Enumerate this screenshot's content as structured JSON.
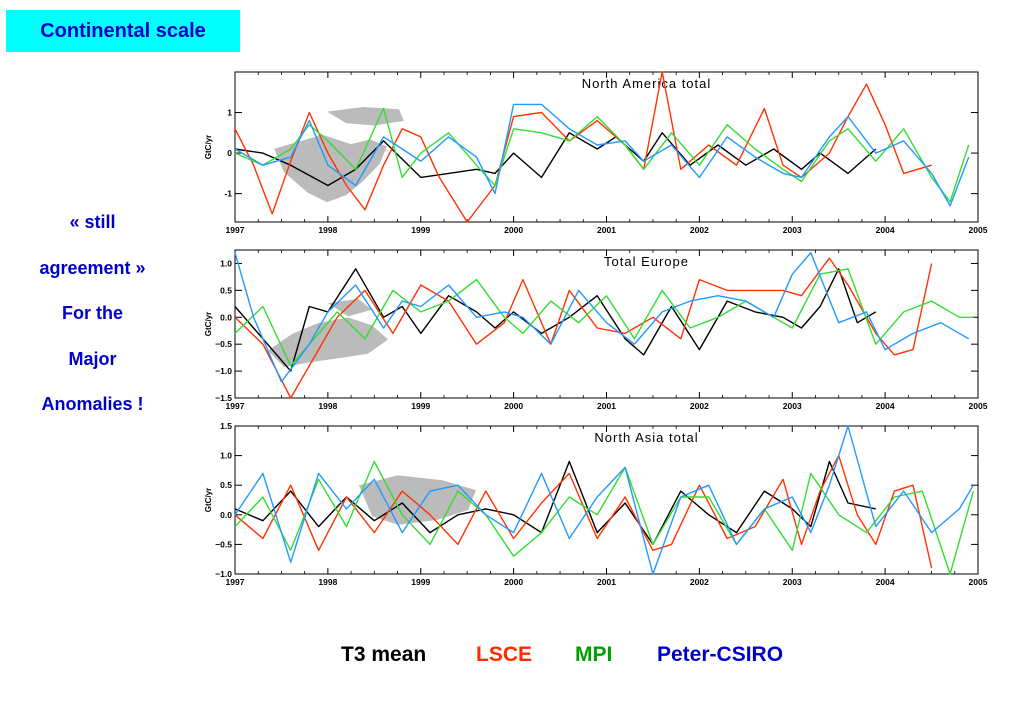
{
  "slide": {
    "title": "Continental scale",
    "side_note": [
      "« still",
      "agreement »",
      "For the",
      "Major",
      "Anomalies !"
    ]
  },
  "legend": {
    "items": [
      {
        "label": "T3 mean",
        "color": "#000000"
      },
      {
        "label": "LSCE",
        "color": "#ff2a00"
      },
      {
        "label": "MPI",
        "color": "#00a000"
      },
      {
        "label": "Peter-CSIRO",
        "color": "#0000cc"
      }
    ]
  },
  "colors": {
    "title_bg": "#00ffff",
    "title_text": "#0000cc",
    "t3_mean": "#000000",
    "lsce": "#ff3300",
    "mpi": "#33dd33",
    "peter_csiro": "#2299ff",
    "land_fill": "#bbbbbb"
  },
  "chart_data": [
    {
      "type": "line",
      "title": "North America total",
      "ylabel": "GtC/yr",
      "xlim": [
        1997,
        2005
      ],
      "ylim": [
        -1.7,
        2.0
      ],
      "yticks": [
        -1,
        0,
        1
      ],
      "xticks": [
        1997,
        1998,
        1999,
        2000,
        2001,
        2002,
        2003,
        2004,
        2005
      ],
      "background_map": "north-america-map",
      "series": [
        {
          "name": "T3 mean",
          "x": [
            1997.0,
            1997.3,
            1997.6,
            1998.0,
            1998.3,
            1998.6,
            1999.0,
            1999.3,
            1999.6,
            1999.8,
            2000.0,
            2000.3,
            2000.6,
            2000.9,
            2001.1,
            2001.4,
            2001.6,
            2001.9,
            2002.2,
            2002.5,
            2002.8,
            2003.1,
            2003.3,
            2003.6,
            2003.9
          ],
          "values": [
            0.1,
            0.0,
            -0.3,
            -0.8,
            -0.4,
            0.3,
            -0.6,
            -0.5,
            -0.4,
            -0.5,
            0.0,
            -0.6,
            0.5,
            0.1,
            0.4,
            -0.2,
            0.5,
            -0.3,
            0.2,
            -0.3,
            0.1,
            -0.4,
            0.0,
            -0.5,
            0.1
          ]
        },
        {
          "name": "LSCE",
          "x": [
            1997.0,
            1997.2,
            1997.4,
            1997.6,
            1997.8,
            1998.0,
            1998.2,
            1998.4,
            1998.6,
            1998.8,
            1999.0,
            1999.2,
            1999.5,
            1999.8,
            2000.0,
            2000.3,
            2000.6,
            2000.9,
            2001.2,
            2001.4,
            2001.6,
            2001.8,
            2002.1,
            2002.4,
            2002.7,
            2002.9,
            2003.1,
            2003.4,
            2003.6,
            2003.8,
            2004.0,
            2004.2,
            2004.5
          ],
          "values": [
            0.6,
            -0.3,
            -1.5,
            -0.2,
            1.0,
            0.0,
            -0.8,
            -1.4,
            -0.3,
            0.6,
            0.4,
            -0.6,
            -1.7,
            -0.8,
            0.9,
            1.0,
            0.3,
            0.8,
            0.2,
            -0.4,
            2.0,
            -0.4,
            0.2,
            -0.3,
            1.1,
            -0.3,
            -0.6,
            0.0,
            0.9,
            1.7,
            0.7,
            -0.5,
            -0.3
          ]
        },
        {
          "name": "MPI",
          "x": [
            1997.0,
            1997.3,
            1997.6,
            1997.8,
            1998.0,
            1998.3,
            1998.6,
            1998.8,
            1999.0,
            1999.3,
            1999.6,
            1999.8,
            2000.0,
            2000.3,
            2000.6,
            2000.9,
            2001.2,
            2001.4,
            2001.7,
            2002.0,
            2002.3,
            2002.6,
            2002.9,
            2003.1,
            2003.4,
            2003.6,
            2003.9,
            2004.2,
            2004.5,
            2004.7,
            2004.9
          ],
          "values": [
            0.0,
            -0.3,
            0.1,
            0.7,
            0.3,
            -0.4,
            1.1,
            -0.6,
            0.0,
            0.5,
            -0.3,
            -0.8,
            0.6,
            0.5,
            0.3,
            0.9,
            0.2,
            -0.4,
            0.5,
            -0.3,
            0.7,
            0.1,
            -0.4,
            -0.7,
            0.3,
            0.6,
            -0.2,
            0.6,
            -0.6,
            -1.2,
            0.2
          ]
        },
        {
          "name": "Peter-CSIRO",
          "x": [
            1997.0,
            1997.3,
            1997.6,
            1997.8,
            1998.0,
            1998.3,
            1998.6,
            1998.8,
            1999.0,
            1999.3,
            1999.6,
            1999.8,
            2000.0,
            2000.3,
            2000.6,
            2000.9,
            2001.2,
            2001.4,
            2001.7,
            2002.0,
            2002.3,
            2002.6,
            2002.9,
            2003.1,
            2003.4,
            2003.6,
            2003.9,
            2004.2,
            2004.5,
            2004.7,
            2004.9
          ],
          "values": [
            0.1,
            -0.3,
            -0.1,
            0.8,
            -0.3,
            -0.8,
            0.4,
            0.1,
            -0.2,
            0.4,
            -0.1,
            -1.0,
            1.2,
            1.2,
            0.6,
            0.2,
            0.3,
            -0.2,
            0.2,
            -0.6,
            0.4,
            -0.1,
            -0.5,
            -0.6,
            0.4,
            0.9,
            0.0,
            0.3,
            -0.5,
            -1.3,
            -0.1
          ]
        }
      ]
    },
    {
      "type": "line",
      "title": "Total Europe",
      "ylabel": "GtC/yr",
      "xlim": [
        1997,
        2005
      ],
      "ylim": [
        -1.5,
        1.25
      ],
      "yticks": [
        -1.5,
        -1.0,
        -0.5,
        0.0,
        0.5,
        1.0
      ],
      "ytick_labels": [
        "−1.5",
        "−1.0",
        "−0.5",
        "0.0",
        "0.5",
        "1.0"
      ],
      "xticks": [
        1997,
        1998,
        1999,
        2000,
        2001,
        2002,
        2003,
        2004,
        2005
      ],
      "background_map": "europe-map",
      "series": [
        {
          "name": "T3 mean",
          "x": [
            1997.0,
            1997.3,
            1997.6,
            1997.8,
            1998.0,
            1998.3,
            1998.6,
            1998.8,
            1999.0,
            1999.3,
            1999.6,
            1999.8,
            2000.0,
            2000.3,
            2000.6,
            2000.9,
            2001.2,
            2001.4,
            2001.7,
            2002.0,
            2002.3,
            2002.6,
            2002.9,
            2003.1,
            2003.3,
            2003.5,
            2003.7,
            2003.9
          ],
          "values": [
            0.2,
            -0.4,
            -1.0,
            0.2,
            0.1,
            0.9,
            0.0,
            0.2,
            -0.3,
            0.4,
            0.1,
            -0.2,
            0.1,
            -0.3,
            0.0,
            0.4,
            -0.4,
            -0.7,
            0.2,
            -0.6,
            0.3,
            0.1,
            0.0,
            -0.2,
            0.2,
            0.9,
            -0.1,
            0.1
          ]
        },
        {
          "name": "LSCE",
          "x": [
            1997.0,
            1997.3,
            1997.6,
            1997.9,
            1998.1,
            1998.4,
            1998.7,
            1999.0,
            1999.3,
            1999.6,
            1999.9,
            2000.1,
            2000.4,
            2000.6,
            2000.9,
            2001.2,
            2001.5,
            2001.8,
            2002.0,
            2002.3,
            2002.6,
            2002.9,
            2003.1,
            2003.4,
            2003.6,
            2003.9,
            2004.1,
            2004.3,
            2004.5
          ],
          "values": [
            0.0,
            -0.5,
            -1.5,
            -0.6,
            0.0,
            0.5,
            -0.3,
            0.6,
            0.3,
            -0.5,
            -0.1,
            0.7,
            -0.5,
            0.5,
            -0.2,
            -0.3,
            0.0,
            -0.4,
            0.7,
            0.5,
            0.5,
            0.5,
            0.4,
            1.1,
            0.6,
            -0.3,
            -0.7,
            -0.6,
            1.0
          ]
        },
        {
          "name": "MPI",
          "x": [
            1997.0,
            1997.3,
            1997.6,
            1997.9,
            1998.1,
            1998.4,
            1998.7,
            1999.0,
            1999.3,
            1999.6,
            1999.9,
            2000.1,
            2000.4,
            2000.7,
            2001.0,
            2001.3,
            2001.6,
            2001.9,
            2002.2,
            2002.5,
            2002.8,
            2003.0,
            2003.3,
            2003.6,
            2003.9,
            2004.2,
            2004.5,
            2004.8,
            2004.95
          ],
          "values": [
            -0.3,
            0.2,
            -0.9,
            -0.3,
            0.1,
            -0.4,
            0.5,
            0.1,
            0.3,
            0.7,
            0.0,
            -0.3,
            0.3,
            -0.1,
            0.4,
            -0.4,
            0.5,
            -0.2,
            0.0,
            0.3,
            0.0,
            -0.2,
            0.8,
            0.9,
            -0.5,
            0.1,
            0.3,
            0.0,
            0.0
          ]
        },
        {
          "name": "Peter-CSIRO",
          "x": [
            1997.0,
            1997.2,
            1997.5,
            1997.8,
            1998.0,
            1998.3,
            1998.6,
            1998.8,
            1999.0,
            1999.3,
            1999.6,
            1999.9,
            2000.1,
            2000.4,
            2000.7,
            2001.0,
            2001.3,
            2001.6,
            2001.9,
            2002.2,
            2002.5,
            2002.8,
            2003.0,
            2003.2,
            2003.5,
            2003.8,
            2004.0,
            2004.3,
            2004.6,
            2004.9
          ],
          "values": [
            1.2,
            0.0,
            -1.2,
            -0.5,
            0.1,
            0.6,
            -0.2,
            0.3,
            0.2,
            0.6,
            0.0,
            0.1,
            0.0,
            -0.5,
            0.5,
            -0.1,
            -0.5,
            0.1,
            0.3,
            0.4,
            0.3,
            0.0,
            0.8,
            1.2,
            -0.1,
            0.1,
            -0.6,
            -0.3,
            -0.1,
            -0.4
          ]
        }
      ]
    },
    {
      "type": "line",
      "title": "North Asia total",
      "ylabel": "GtC/yr",
      "xlim": [
        1997,
        2005
      ],
      "ylim": [
        -1.0,
        1.5
      ],
      "yticks": [
        -1.0,
        -0.5,
        0.0,
        0.5,
        1.0,
        1.5
      ],
      "ytick_labels": [
        "−1.0",
        "−0.5",
        "0.0",
        "0.5",
        "1.0",
        "1.5"
      ],
      "xticks": [
        1997,
        1998,
        1999,
        2000,
        2001,
        2002,
        2003,
        2004,
        2005
      ],
      "background_map": "north-asia-map",
      "series": [
        {
          "name": "T3 mean",
          "x": [
            1997.0,
            1997.3,
            1997.6,
            1997.9,
            1998.2,
            1998.5,
            1998.8,
            1999.1,
            1999.4,
            1999.7,
            2000.0,
            2000.3,
            2000.6,
            2000.9,
            2001.2,
            2001.5,
            2001.8,
            2002.1,
            2002.4,
            2002.7,
            2003.0,
            2003.2,
            2003.4,
            2003.6,
            2003.9
          ],
          "values": [
            0.1,
            -0.1,
            0.4,
            -0.2,
            0.3,
            -0.1,
            0.2,
            -0.3,
            0.0,
            0.1,
            0.0,
            -0.3,
            0.9,
            -0.3,
            0.2,
            -0.5,
            0.4,
            0.0,
            -0.3,
            0.4,
            0.1,
            -0.2,
            0.9,
            0.2,
            0.1
          ]
        },
        {
          "name": "LSCE",
          "x": [
            1997.0,
            1997.3,
            1997.6,
            1997.9,
            1998.2,
            1998.5,
            1998.8,
            1999.1,
            1999.4,
            1999.7,
            2000.0,
            2000.3,
            2000.6,
            2000.9,
            2001.2,
            2001.5,
            2001.7,
            2002.0,
            2002.3,
            2002.6,
            2002.9,
            2003.1,
            2003.3,
            2003.5,
            2003.7,
            2003.9,
            2004.1,
            2004.3,
            2004.5
          ],
          "values": [
            0.0,
            -0.4,
            0.5,
            -0.6,
            0.3,
            -0.3,
            0.4,
            0.0,
            -0.5,
            0.4,
            -0.4,
            0.2,
            0.7,
            -0.4,
            0.3,
            -0.6,
            -0.5,
            0.5,
            -0.4,
            -0.2,
            0.6,
            -0.5,
            0.4,
            1.0,
            0.0,
            -0.5,
            0.4,
            0.5,
            -0.9
          ]
        },
        {
          "name": "MPI",
          "x": [
            1997.0,
            1997.3,
            1997.6,
            1997.9,
            1998.2,
            1998.5,
            1998.8,
            1999.1,
            1999.4,
            1999.7,
            2000.0,
            2000.3,
            2000.6,
            2000.9,
            2001.2,
            2001.5,
            2001.8,
            2002.1,
            2002.4,
            2002.7,
            2003.0,
            2003.2,
            2003.5,
            2003.8,
            2004.1,
            2004.4,
            2004.7,
            2004.95
          ],
          "values": [
            -0.2,
            0.3,
            -0.6,
            0.6,
            -0.2,
            0.9,
            0.0,
            -0.5,
            0.4,
            0.0,
            -0.7,
            -0.3,
            0.3,
            0.0,
            0.8,
            -0.5,
            0.3,
            0.3,
            -0.5,
            0.1,
            -0.6,
            0.7,
            0.0,
            -0.3,
            0.3,
            0.4,
            -1.0,
            0.4
          ]
        },
        {
          "name": "Peter-CSIRO",
          "x": [
            1997.0,
            1997.3,
            1997.6,
            1997.9,
            1998.2,
            1998.5,
            1998.8,
            1999.1,
            1999.4,
            1999.7,
            2000.0,
            2000.3,
            2000.6,
            2000.9,
            2001.2,
            2001.5,
            2001.8,
            2002.1,
            2002.4,
            2002.7,
            2003.0,
            2003.2,
            2003.4,
            2003.6,
            2003.9,
            2004.2,
            2004.5,
            2004.8,
            2004.95
          ],
          "values": [
            0.0,
            0.7,
            -0.8,
            0.7,
            0.1,
            0.6,
            -0.3,
            0.4,
            0.5,
            0.0,
            -0.3,
            0.7,
            -0.4,
            0.3,
            0.8,
            -1.0,
            0.3,
            0.5,
            -0.5,
            0.1,
            0.3,
            -0.3,
            0.5,
            1.5,
            -0.2,
            0.4,
            -0.3,
            0.1,
            0.5
          ]
        }
      ]
    }
  ]
}
